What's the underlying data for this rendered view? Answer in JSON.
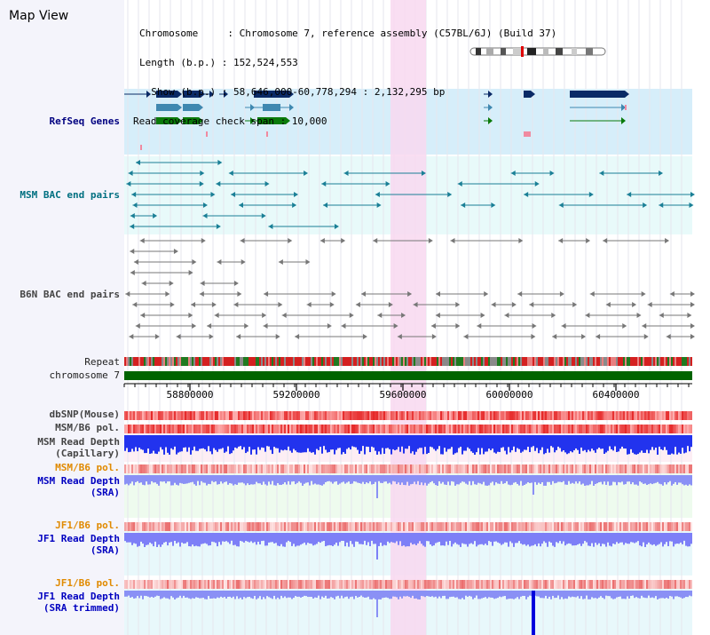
{
  "title": "Map View",
  "info": {
    "chromosome": "Chromosome     : Chromosome 7, reference assembly (C57BL/6J) (Build 37)",
    "length": "Length (b.p.) : 152,524,553",
    "show": "  Show (b.p.) : 58,646,000-60,778,294 : 2,132,295 bp",
    "span": "Read coverage check span : 10,000"
  },
  "tracks": {
    "refseq": "RefSeq Genes",
    "msm_bac": "MSM BAC end pairs",
    "b6n_bac": "B6N BAC end pairs",
    "repeat": "Repeat",
    "chromosome": "chromosome 7",
    "dbsnp": "dbSNP(Mouse)",
    "msm_b6_pol_1": "MSM/B6 pol.",
    "msm_read_depth_cap_1": "MSM Read Depth",
    "msm_read_depth_cap_2": "(Capillary)",
    "msm_b6_pol_2": "MSM/B6 pol.",
    "msm_read_depth_sra_1": "MSM Read Depth",
    "msm_read_depth_sra_2": "(SRA)",
    "jf1_b6_pol_1": "JF1/B6 pol.",
    "jf1_read_depth_sra_1": "JF1 Read Depth",
    "jf1_read_depth_sra_2": "(SRA)",
    "jf1_b6_pol_2": "JF1/B6 pol.",
    "jf1_read_depth_trim_1": "JF1 Read Depth",
    "jf1_read_depth_trim_2": "(SRA trimmed)"
  },
  "axis_ticks": [
    "58800000",
    "59200000",
    "59600000",
    "60000000",
    "60400000"
  ],
  "colors": {
    "highlight": "#f8d8f0",
    "refseq_bg": "#d6eefa",
    "msm_bac_bg": "#e8fafa",
    "gene_dark": "#0a2a66",
    "gene_mid": "#3f88b0",
    "gene_green": "#0a7a0a",
    "chromosome": "#006400",
    "depth_blue": "#1a1aff",
    "depth_light": "#8f8fff"
  }
}
